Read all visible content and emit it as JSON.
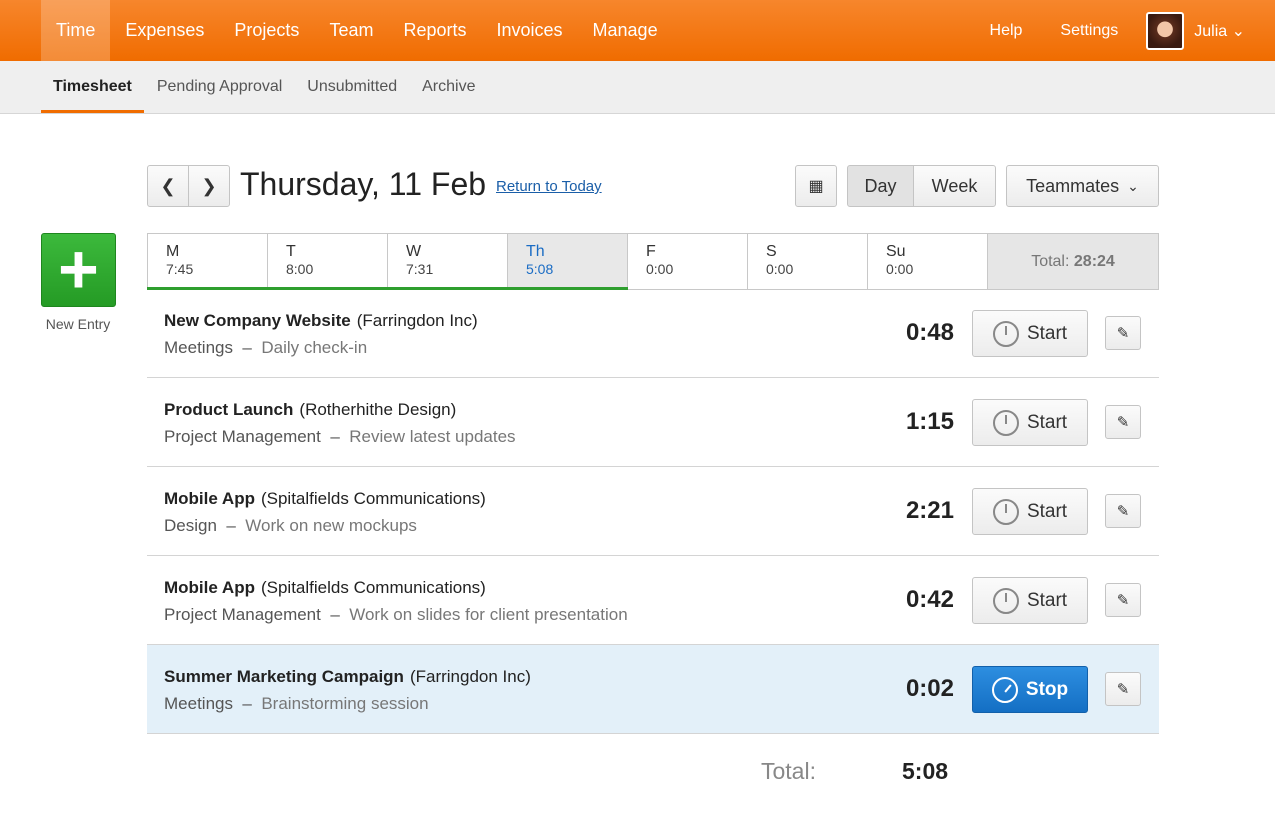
{
  "nav": {
    "items": [
      "Time",
      "Expenses",
      "Projects",
      "Team",
      "Reports",
      "Invoices",
      "Manage"
    ],
    "active": 0,
    "help": "Help",
    "settings": "Settings",
    "user": "Julia"
  },
  "subnav": {
    "tabs": [
      "Timesheet",
      "Pending Approval",
      "Unsubmitted",
      "Archive"
    ],
    "active": 0
  },
  "date": {
    "title": "Thursday, 11 Feb",
    "return_link": "Return to Today",
    "prev_icon": "chevron-left",
    "next_icon": "chevron-right",
    "calendar_icon": "calendar",
    "day_label": "Day",
    "week_label": "Week",
    "teammates_label": "Teammates"
  },
  "week": {
    "days": [
      {
        "d": "M",
        "t": "7:45"
      },
      {
        "d": "T",
        "t": "8:00"
      },
      {
        "d": "W",
        "t": "7:31"
      },
      {
        "d": "Th",
        "t": "5:08"
      },
      {
        "d": "F",
        "t": "0:00"
      },
      {
        "d": "S",
        "t": "0:00"
      },
      {
        "d": "Su",
        "t": "0:00"
      }
    ],
    "selected": 3,
    "total_label": "Total:",
    "total": "28:24"
  },
  "new_entry": {
    "label": "New Entry",
    "icon": "plus"
  },
  "entries": [
    {
      "project": "New Company Website",
      "client": "(Farringdon Inc)",
      "task": "Meetings",
      "notes": "Daily check-in",
      "duration": "0:48",
      "action": "Start",
      "running": false
    },
    {
      "project": "Product Launch",
      "client": "(Rotherhithe Design)",
      "task": "Project Management",
      "notes": "Review latest updates",
      "duration": "1:15",
      "action": "Start",
      "running": false
    },
    {
      "project": "Mobile App",
      "client": "(Spitalfields Communications)",
      "task": "Design",
      "notes": "Work on new mockups",
      "duration": "2:21",
      "action": "Start",
      "running": false
    },
    {
      "project": "Mobile App",
      "client": "(Spitalfields Communications)",
      "task": "Project Management",
      "notes": "Work on slides for client presentation",
      "duration": "0:42",
      "action": "Start",
      "running": false
    },
    {
      "project": "Summer Marketing Campaign",
      "client": "(Farringdon Inc)",
      "task": "Meetings",
      "notes": "Brainstorming session",
      "duration": "0:02",
      "action": "Stop",
      "running": true
    }
  ],
  "footer": {
    "total_label": "Total:",
    "total": "5:08"
  },
  "colors": {
    "brand": "#f06c00",
    "accent_blue": "#1a6cc4",
    "green": "#2f9f2f",
    "running_bg": "#e3f0f9"
  }
}
